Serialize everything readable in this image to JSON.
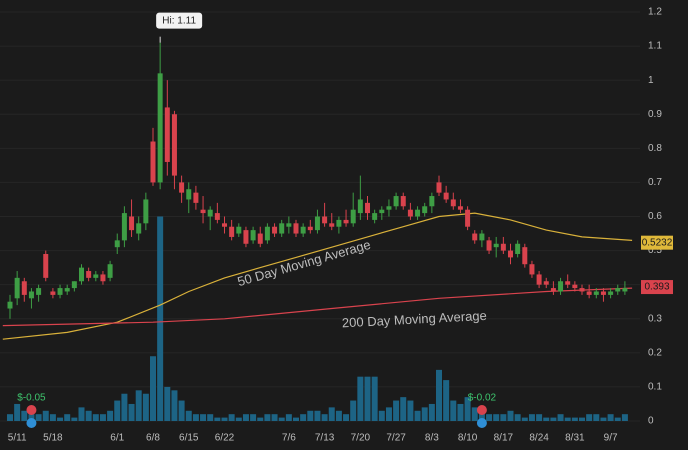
{
  "chart_data": {
    "type": "candlestick",
    "categories": [
      null,
      "5/11",
      null,
      null,
      null,
      null,
      "5/18",
      null,
      null,
      null,
      null,
      null,
      null,
      null,
      null,
      "6/1",
      null,
      null,
      null,
      null,
      "6/8",
      null,
      null,
      null,
      null,
      "6/15",
      null,
      null,
      null,
      null,
      "6/22",
      null,
      null,
      null,
      null,
      null,
      null,
      null,
      null,
      "7/6",
      null,
      null,
      null,
      null,
      "7/13",
      null,
      null,
      null,
      null,
      "7/20",
      null,
      null,
      null,
      null,
      "7/27",
      null,
      null,
      null,
      null,
      "8/3",
      null,
      null,
      null,
      null,
      "8/10",
      null,
      null,
      null,
      null,
      "8/17",
      null,
      null,
      null,
      null,
      "8/24",
      null,
      null,
      null,
      null,
      "8/31",
      null,
      null,
      null,
      null,
      "9/7",
      null,
      null
    ],
    "open": [
      0.33,
      0.36,
      0.41,
      0.36,
      0.37,
      0.49,
      0.38,
      0.37,
      0.38,
      0.39,
      0.41,
      0.44,
      0.42,
      0.43,
      0.42,
      0.51,
      0.53,
      0.6,
      0.55,
      0.58,
      0.82,
      0.7,
      0.92,
      0.9,
      0.7,
      0.65,
      0.67,
      0.62,
      0.6,
      0.61,
      0.58,
      0.57,
      0.55,
      0.56,
      0.53,
      0.55,
      0.53,
      0.57,
      0.55,
      0.57,
      0.58,
      0.55,
      0.57,
      0.56,
      0.6,
      0.58,
      0.57,
      0.59,
      0.58,
      0.61,
      0.64,
      0.59,
      0.61,
      0.62,
      0.63,
      0.66,
      0.62,
      0.6,
      0.61,
      0.63,
      0.7,
      0.67,
      0.65,
      0.63,
      0.62,
      0.55,
      0.53,
      0.53,
      0.51,
      0.52,
      0.5,
      0.49,
      0.51,
      0.46,
      0.43,
      0.41,
      0.39,
      0.38,
      0.41,
      0.4,
      0.39,
      0.38,
      0.37,
      0.38,
      0.37,
      0.38,
      0.38
    ],
    "high": [
      0.37,
      0.44,
      0.42,
      0.39,
      0.4,
      0.5,
      0.39,
      0.4,
      0.4,
      0.41,
      0.46,
      0.45,
      0.44,
      0.44,
      0.47,
      0.55,
      0.63,
      0.65,
      0.6,
      0.67,
      0.86,
      1.11,
      1.0,
      0.91,
      0.72,
      0.7,
      0.69,
      0.66,
      0.63,
      0.64,
      0.6,
      0.59,
      0.58,
      0.57,
      0.57,
      0.57,
      0.58,
      0.58,
      0.59,
      0.6,
      0.59,
      0.58,
      0.59,
      0.62,
      0.64,
      0.61,
      0.6,
      0.62,
      0.67,
      0.72,
      0.66,
      0.62,
      0.63,
      0.65,
      0.67,
      0.67,
      0.64,
      0.63,
      0.64,
      0.67,
      0.72,
      0.69,
      0.67,
      0.65,
      0.63,
      0.56,
      0.56,
      0.54,
      0.54,
      0.54,
      0.52,
      0.53,
      0.52,
      0.47,
      0.44,
      0.42,
      0.41,
      0.42,
      0.43,
      0.41,
      0.4,
      0.4,
      0.39,
      0.39,
      0.39,
      0.4,
      0.41
    ],
    "low": [
      0.3,
      0.34,
      0.35,
      0.33,
      0.35,
      0.41,
      0.36,
      0.36,
      0.37,
      0.38,
      0.4,
      0.41,
      0.41,
      0.4,
      0.41,
      0.49,
      0.51,
      0.54,
      0.53,
      0.56,
      0.69,
      0.68,
      0.72,
      0.68,
      0.64,
      0.61,
      0.62,
      0.58,
      0.56,
      0.58,
      0.55,
      0.53,
      0.54,
      0.51,
      0.52,
      0.51,
      0.52,
      0.54,
      0.54,
      0.55,
      0.54,
      0.54,
      0.55,
      0.55,
      0.57,
      0.56,
      0.55,
      0.57,
      0.57,
      0.59,
      0.59,
      0.58,
      0.59,
      0.6,
      0.62,
      0.62,
      0.59,
      0.59,
      0.6,
      0.61,
      0.66,
      0.64,
      0.62,
      0.61,
      0.56,
      0.52,
      0.51,
      0.49,
      0.48,
      0.49,
      0.46,
      0.48,
      0.45,
      0.42,
      0.39,
      0.39,
      0.37,
      0.37,
      0.39,
      0.38,
      0.37,
      0.36,
      0.36,
      0.35,
      0.36,
      0.37,
      0.37
    ],
    "close": [
      0.35,
      0.42,
      0.37,
      0.38,
      0.39,
      0.42,
      0.37,
      0.39,
      0.39,
      0.41,
      0.45,
      0.42,
      0.43,
      0.41,
      0.46,
      0.53,
      0.61,
      0.56,
      0.58,
      0.65,
      0.7,
      1.02,
      0.76,
      0.72,
      0.67,
      0.68,
      0.64,
      0.61,
      0.62,
      0.59,
      0.57,
      0.54,
      0.57,
      0.52,
      0.56,
      0.52,
      0.57,
      0.55,
      0.58,
      0.58,
      0.55,
      0.57,
      0.56,
      0.6,
      0.58,
      0.57,
      0.59,
      0.58,
      0.62,
      0.65,
      0.61,
      0.61,
      0.62,
      0.63,
      0.66,
      0.63,
      0.6,
      0.62,
      0.63,
      0.66,
      0.67,
      0.65,
      0.63,
      0.62,
      0.57,
      0.53,
      0.55,
      0.5,
      0.52,
      0.5,
      0.48,
      0.52,
      0.46,
      0.43,
      0.4,
      0.4,
      0.38,
      0.41,
      0.4,
      0.39,
      0.38,
      0.37,
      0.38,
      0.37,
      0.38,
      0.39,
      0.39
    ],
    "volume": [
      0.02,
      0.05,
      0.03,
      0.02,
      0.02,
      0.03,
      0.02,
      0.01,
      0.02,
      0.01,
      0.04,
      0.03,
      0.02,
      0.02,
      0.03,
      0.06,
      0.08,
      0.05,
      0.09,
      0.08,
      0.19,
      0.6,
      0.1,
      0.09,
      0.06,
      0.03,
      0.02,
      0.02,
      0.02,
      0.01,
      0.01,
      0.02,
      0.01,
      0.02,
      0.02,
      0.01,
      0.02,
      0.02,
      0.01,
      0.02,
      0.01,
      0.02,
      0.03,
      0.03,
      0.02,
      0.04,
      0.03,
      0.02,
      0.06,
      0.13,
      0.13,
      0.13,
      0.03,
      0.04,
      0.06,
      0.07,
      0.06,
      0.03,
      0.04,
      0.05,
      0.15,
      0.12,
      0.06,
      0.05,
      0.07,
      0.04,
      0.04,
      0.02,
      0.02,
      0.02,
      0.03,
      0.02,
      0.01,
      0.02,
      0.02,
      0.01,
      0.01,
      0.02,
      0.01,
      0.01,
      0.01,
      0.02,
      0.02,
      0.01,
      0.02,
      0.01,
      0.02
    ],
    "up_color": "#3e9e45",
    "down_color": "#d9434d",
    "volume_color": "#1d6485",
    "moving_averages": [
      {
        "name": "50 Day Moving Average",
        "color": "#d9b13a",
        "x": [
          -1,
          8,
          15,
          21,
          25,
          30,
          35,
          40,
          45,
          50,
          55,
          60,
          65,
          70,
          75,
          80,
          87
        ],
        "values": [
          0.24,
          0.26,
          0.29,
          0.34,
          0.38,
          0.42,
          0.45,
          0.48,
          0.51,
          0.54,
          0.57,
          0.6,
          0.61,
          0.59,
          0.56,
          0.54,
          0.53
        ]
      },
      {
        "name": "200 Day Moving Average",
        "color": "#d9434d",
        "x": [
          -1,
          20,
          30,
          45,
          60,
          75,
          87
        ],
        "values": [
          0.28,
          0.29,
          0.3,
          0.33,
          0.36,
          0.38,
          0.39
        ]
      }
    ],
    "price_tags": [
      {
        "value": 0.5232,
        "color": "#e0b93a"
      },
      {
        "value": 0.393,
        "color": "#d9434d"
      }
    ],
    "high_label": "Hi: 1.11",
    "events": [
      {
        "x": 3,
        "label": "$-0.05"
      },
      {
        "x": 66,
        "label": "$-0.02"
      }
    ],
    "ylim": [
      0,
      1.2
    ],
    "yticks": [
      0,
      0.1,
      0.2,
      0.3,
      0.4,
      0.5,
      0.6,
      0.7,
      0.8,
      0.9,
      1,
      1.1,
      1.2
    ],
    "grid": true
  }
}
